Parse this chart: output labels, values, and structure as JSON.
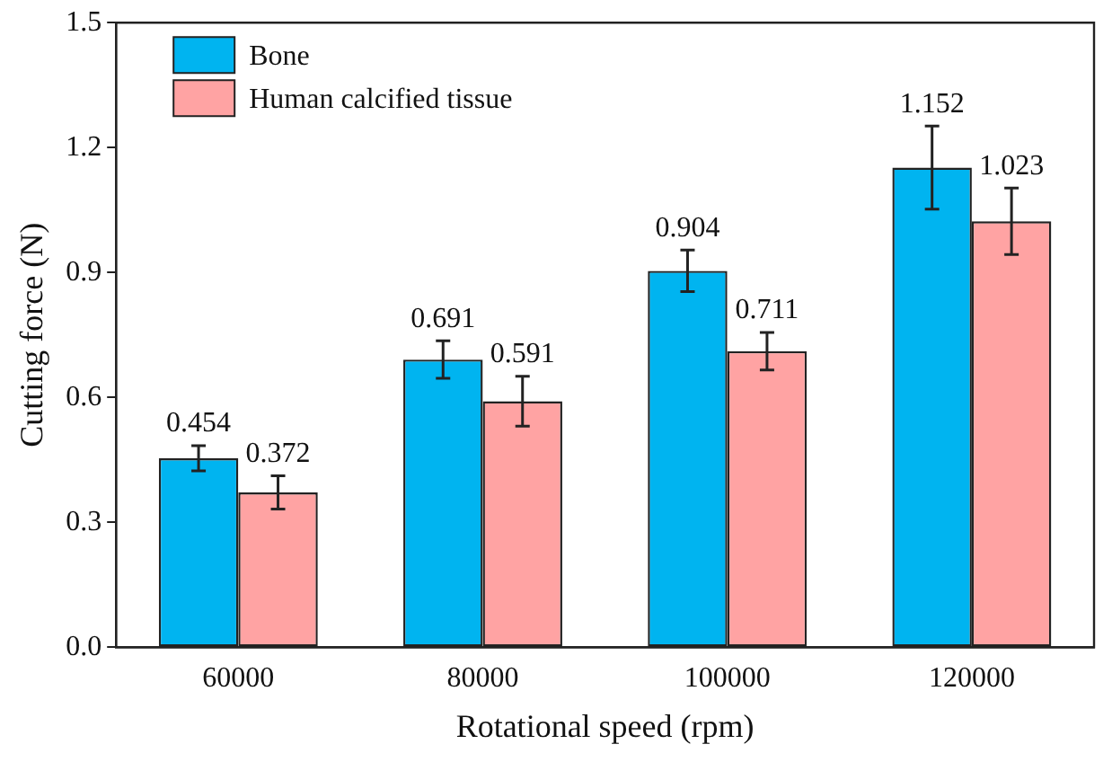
{
  "chart_data": {
    "type": "bar",
    "xlabel": "Rotational speed (rpm)",
    "ylabel": "Cutting force (N)",
    "categories": [
      "60000",
      "80000",
      "100000",
      "120000"
    ],
    "series": [
      {
        "name": "Bone",
        "color": "#00b4f0",
        "values": [
          0.454,
          0.691,
          0.904,
          1.152
        ],
        "errors": [
          0.03,
          0.045,
          0.05,
          0.1
        ]
      },
      {
        "name": "Human calcified tissue",
        "color": "#ffa3a3",
        "values": [
          0.372,
          0.591,
          0.711,
          1.023
        ],
        "errors": [
          0.04,
          0.06,
          0.045,
          0.08
        ]
      }
    ],
    "ylim": [
      0,
      1.5
    ],
    "yticks": [
      {
        "value": 0,
        "label": "0.0"
      },
      0.3,
      0.6,
      0.9,
      1.2,
      1.5
    ],
    "data_labels": true,
    "legend": "top left",
    "grid": false
  }
}
